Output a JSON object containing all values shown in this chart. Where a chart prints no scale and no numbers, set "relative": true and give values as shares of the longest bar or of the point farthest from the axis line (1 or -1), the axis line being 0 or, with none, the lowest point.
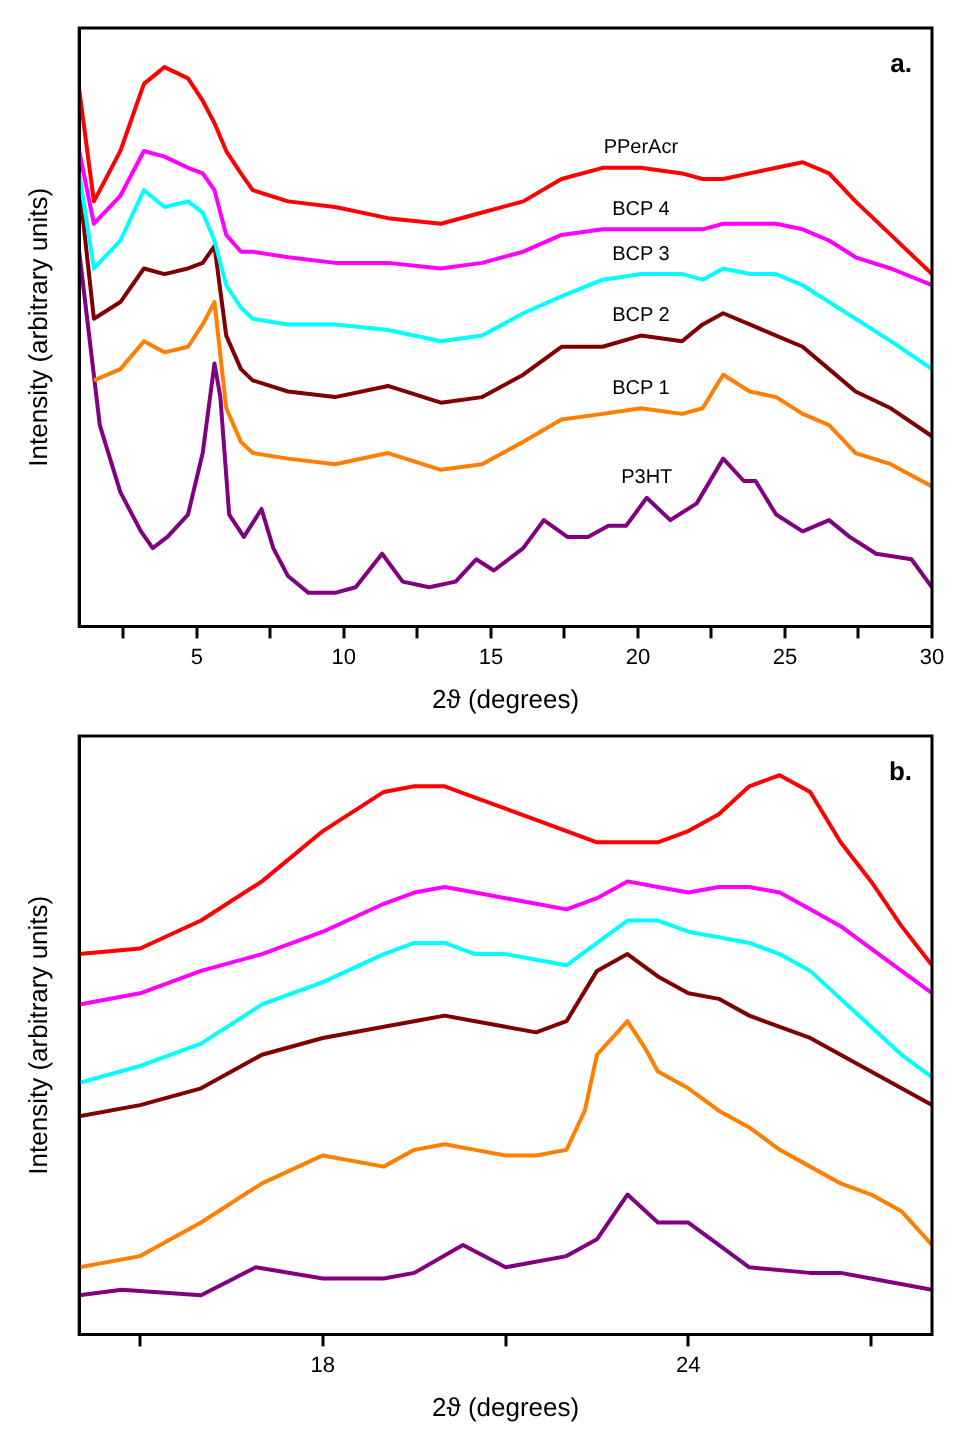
{
  "chart_data": [
    {
      "type": "line",
      "relative": true,
      "marker": "none",
      "xlabel": "2ϑ (degrees)",
      "ylabel": "Intensity (arbitrary units)",
      "annotations": [
        "a."
      ],
      "xlim": [
        1,
        30
      ],
      "xticks": [
        {
          "value": 2.5,
          "label": null
        },
        5,
        {
          "value": 7.5,
          "label": null
        },
        10,
        {
          "value": 12.5,
          "label": null
        },
        15,
        {
          "value": 17.5,
          "label": null
        },
        20,
        {
          "value": 22.5,
          "label": null
        },
        25,
        {
          "value": 27.5,
          "label": null
        },
        30
      ],
      "x": [
        1.0,
        1.5,
        2.4,
        3.2,
        3.9,
        4.7,
        5.2,
        5.6,
        6.0,
        6.5,
        6.9,
        8.1,
        9.7,
        11.5,
        13.3,
        14.7,
        16.1,
        17.4,
        18.8,
        20.1,
        21.5,
        22.2,
        22.9,
        23.8,
        24.7,
        25.6,
        26.5,
        27.4,
        28.6,
        30.0
      ],
      "series": [
        {
          "name": "PPerAcr",
          "color": "#ff0000",
          "values": [
            0.96,
            0.76,
            0.85,
            0.97,
            1.0,
            0.98,
            0.94,
            0.9,
            0.85,
            0.81,
            0.78,
            0.76,
            0.75,
            0.73,
            0.72,
            0.74,
            0.76,
            0.8,
            0.82,
            0.82,
            0.81,
            0.8,
            0.8,
            0.81,
            0.82,
            0.83,
            0.81,
            0.76,
            0.7,
            0.63
          ]
        },
        {
          "name": "BCP 4",
          "color": "#ff00ff",
          "values": [
            0.85,
            0.72,
            0.77,
            0.85,
            0.84,
            0.82,
            0.81,
            0.78,
            0.7,
            0.67,
            0.67,
            0.66,
            0.65,
            0.65,
            0.64,
            0.65,
            0.67,
            0.7,
            0.71,
            0.71,
            0.71,
            0.71,
            0.72,
            0.72,
            0.72,
            0.71,
            0.69,
            0.66,
            0.64,
            0.61
          ]
        },
        {
          "name": "BCP 3",
          "color": "#00ffff",
          "values": [
            0.81,
            0.64,
            0.69,
            0.78,
            0.75,
            0.76,
            0.74,
            0.69,
            0.61,
            0.57,
            0.55,
            0.54,
            0.54,
            0.53,
            0.51,
            0.52,
            0.56,
            0.59,
            0.62,
            0.63,
            0.63,
            0.62,
            0.64,
            0.63,
            0.63,
            0.61,
            0.58,
            0.55,
            0.51,
            0.46
          ]
        },
        {
          "name": "BCP 2",
          "color": "#800000",
          "values": [
            0.79,
            0.55,
            0.58,
            0.64,
            0.63,
            0.64,
            0.65,
            0.68,
            0.52,
            0.46,
            0.44,
            0.42,
            0.41,
            0.43,
            0.4,
            0.41,
            0.45,
            0.5,
            0.5,
            0.52,
            0.51,
            0.54,
            0.56,
            0.54,
            0.52,
            0.5,
            0.46,
            0.42,
            0.39,
            0.34
          ]
        },
        {
          "name": "BCP 1",
          "color": "#ff8000",
          "values": [
            null,
            0.44,
            0.46,
            0.51,
            0.49,
            0.5,
            0.54,
            0.58,
            0.39,
            0.33,
            0.31,
            0.3,
            0.29,
            0.31,
            0.28,
            0.29,
            0.33,
            0.37,
            0.38,
            0.39,
            0.38,
            0.39,
            0.45,
            0.42,
            0.41,
            0.38,
            0.36,
            0.31,
            0.29,
            0.25
          ]
        },
        {
          "name": "P3HT",
          "color": "#800080",
          "x": [
            1.0,
            1.7,
            2.4,
            3.1,
            3.5,
            4.0,
            4.7,
            5.2,
            5.6,
            5.8,
            6.1,
            6.6,
            7.2,
            7.6,
            8.1,
            8.8,
            9.7,
            10.4,
            11.3,
            12.0,
            12.9,
            13.8,
            14.5,
            15.1,
            16.1,
            16.8,
            17.6,
            18.3,
            19.0,
            19.6,
            20.3,
            21.1,
            22.0,
            22.9,
            23.6,
            24.0,
            24.7,
            25.6,
            26.5,
            27.2,
            28.1,
            29.3,
            30.0
          ],
          "values": [
            0.67,
            0.36,
            0.24,
            0.17,
            0.14,
            0.16,
            0.2,
            0.31,
            0.47,
            0.41,
            0.2,
            0.16,
            0.21,
            0.14,
            0.09,
            0.06,
            0.06,
            0.07,
            0.13,
            0.08,
            0.07,
            0.08,
            0.12,
            0.1,
            0.14,
            0.19,
            0.16,
            0.16,
            0.18,
            0.18,
            0.23,
            0.19,
            0.22,
            0.3,
            0.26,
            0.26,
            0.2,
            0.17,
            0.19,
            0.16,
            0.13,
            0.12,
            0.07
          ]
        }
      ]
    },
    {
      "type": "line",
      "relative": true,
      "marker": "none",
      "xlabel": "2ϑ (degrees)",
      "ylabel": "Intensity (arbitrary units)",
      "annotations": [
        "b."
      ],
      "xlim": [
        14,
        28
      ],
      "xticks": [
        {
          "value": 15,
          "label": null
        },
        18,
        {
          "value": 21,
          "label": null
        },
        24,
        {
          "value": 27,
          "label": null
        }
      ],
      "x": [
        14,
        15,
        16,
        17,
        18,
        19,
        19.5,
        20,
        20.5,
        21,
        21.5,
        22,
        22.5,
        23,
        23.5,
        24,
        24.5,
        25,
        25.5,
        26,
        26.5,
        27,
        27.5,
        28
      ],
      "series": [
        {
          "color": "#ff0000",
          "values": [
            0.68,
            0.69,
            0.74,
            0.81,
            0.9,
            0.97,
            0.98,
            0.98,
            0.96,
            0.94,
            0.92,
            0.9,
            0.88,
            0.88,
            0.88,
            0.9,
            0.93,
            0.98,
            1.0,
            0.97,
            0.88,
            0.81,
            0.73,
            0.66
          ]
        },
        {
          "color": "#ff00ff",
          "values": [
            0.59,
            0.61,
            0.65,
            0.68,
            0.72,
            0.77,
            0.79,
            0.8,
            0.79,
            0.78,
            0.77,
            0.76,
            0.78,
            0.81,
            0.8,
            0.79,
            0.8,
            0.8,
            0.79,
            0.76,
            0.73,
            0.69,
            0.65,
            0.61
          ]
        },
        {
          "color": "#00ffff",
          "values": [
            0.45,
            0.48,
            0.52,
            0.59,
            0.63,
            0.68,
            0.7,
            0.7,
            0.68,
            0.68,
            0.67,
            0.66,
            0.7,
            0.74,
            0.74,
            0.72,
            0.71,
            0.7,
            0.68,
            0.65,
            0.6,
            0.55,
            0.5,
            0.46
          ]
        },
        {
          "color": "#800000",
          "values": [
            0.39,
            0.41,
            0.44,
            0.5,
            0.53,
            0.55,
            0.56,
            0.57,
            0.56,
            0.55,
            0.54,
            0.56,
            0.65,
            0.68,
            0.64,
            0.61,
            0.6,
            0.57,
            0.55,
            0.53,
            0.5,
            0.47,
            0.44,
            0.41
          ]
        },
        {
          "color": "#ff8000",
          "x": [
            14,
            15,
            16,
            17,
            18,
            19,
            19.5,
            20,
            20.5,
            21,
            21.5,
            22,
            22.3,
            22.5,
            23,
            23.3,
            23.5,
            24,
            24.5,
            25,
            25.5,
            26,
            26.5,
            27,
            27.5,
            28
          ],
          "values": [
            0.12,
            0.14,
            0.2,
            0.27,
            0.32,
            0.3,
            0.33,
            0.34,
            0.33,
            0.32,
            0.32,
            0.33,
            0.4,
            0.5,
            0.56,
            0.51,
            0.47,
            0.44,
            0.4,
            0.37,
            0.33,
            0.3,
            0.27,
            0.25,
            0.22,
            0.16
          ]
        },
        {
          "color": "#800080",
          "x": [
            14,
            14.7,
            16,
            16.9,
            18,
            19,
            19.5,
            20.3,
            21,
            22,
            22.5,
            23,
            23.5,
            24,
            24.5,
            25,
            26,
            26.5,
            27,
            28
          ],
          "values": [
            0.07,
            0.08,
            0.07,
            0.12,
            0.1,
            0.1,
            0.11,
            0.16,
            0.12,
            0.14,
            0.17,
            0.25,
            0.2,
            0.2,
            0.16,
            0.12,
            0.11,
            0.11,
            0.1,
            0.08
          ]
        }
      ]
    }
  ]
}
